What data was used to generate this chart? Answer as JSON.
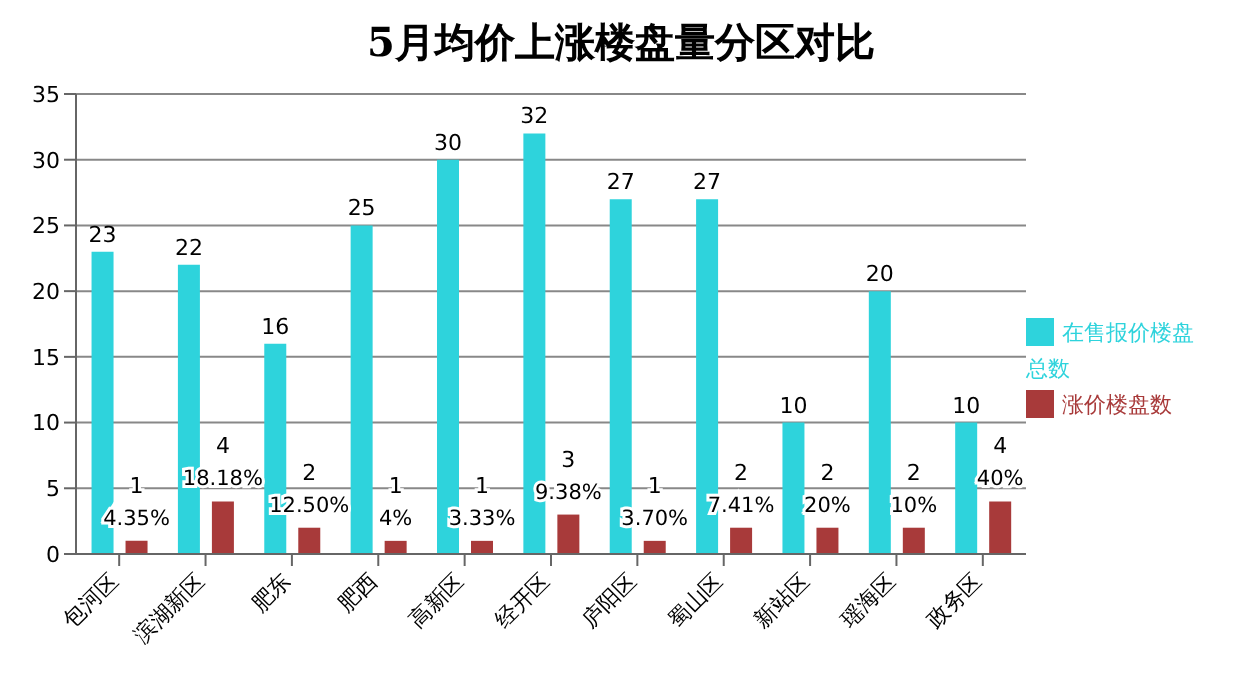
{
  "chart_data": {
    "type": "bar",
    "title": "5月均价上涨楼盘量分区对比",
    "categories": [
      "包河区",
      "滨湖新区",
      "肥东",
      "肥西",
      "高新区",
      "经开区",
      "庐阳区",
      "蜀山区",
      "新站区",
      "瑶海区",
      "政务区"
    ],
    "series": [
      {
        "name": "在售报价楼盘总数",
        "color": "#2ed3dc",
        "values": [
          23,
          22,
          16,
          25,
          30,
          32,
          27,
          27,
          10,
          20,
          10
        ]
      },
      {
        "name": "涨价楼盘数",
        "color": "#a83a3a",
        "values": [
          1,
          4,
          2,
          1,
          1,
          3,
          1,
          2,
          2,
          2,
          4
        ]
      }
    ],
    "annotations": [
      {
        "text": "4.35%",
        "x": "包河区",
        "y": 1
      },
      {
        "text": "18.18%",
        "x": "滨湖新区",
        "y": 4
      },
      {
        "text": "12.50%",
        "x": "肥东",
        "y": 2
      },
      {
        "text": "4%",
        "x": "肥西",
        "y": 1
      },
      {
        "text": "3.33%",
        "x": "高新区",
        "y": 1
      },
      {
        "text": "9.38%",
        "x": "经开区",
        "y": 3
      },
      {
        "text": "3.70%",
        "x": "庐阳区",
        "y": 1
      },
      {
        "text": "7.41%",
        "x": "蜀山区",
        "y": 2
      },
      {
        "text": "20%",
        "x": "新站区",
        "y": 2
      },
      {
        "text": "10%",
        "x": "瑶海区",
        "y": 2
      },
      {
        "text": "40%",
        "x": "政务区",
        "y": 4
      }
    ],
    "ylim": [
      0,
      35
    ],
    "yticks": [
      0,
      5,
      10,
      15,
      20,
      25,
      30,
      35
    ],
    "grid": "y",
    "legend": "right",
    "data_labels": true
  }
}
